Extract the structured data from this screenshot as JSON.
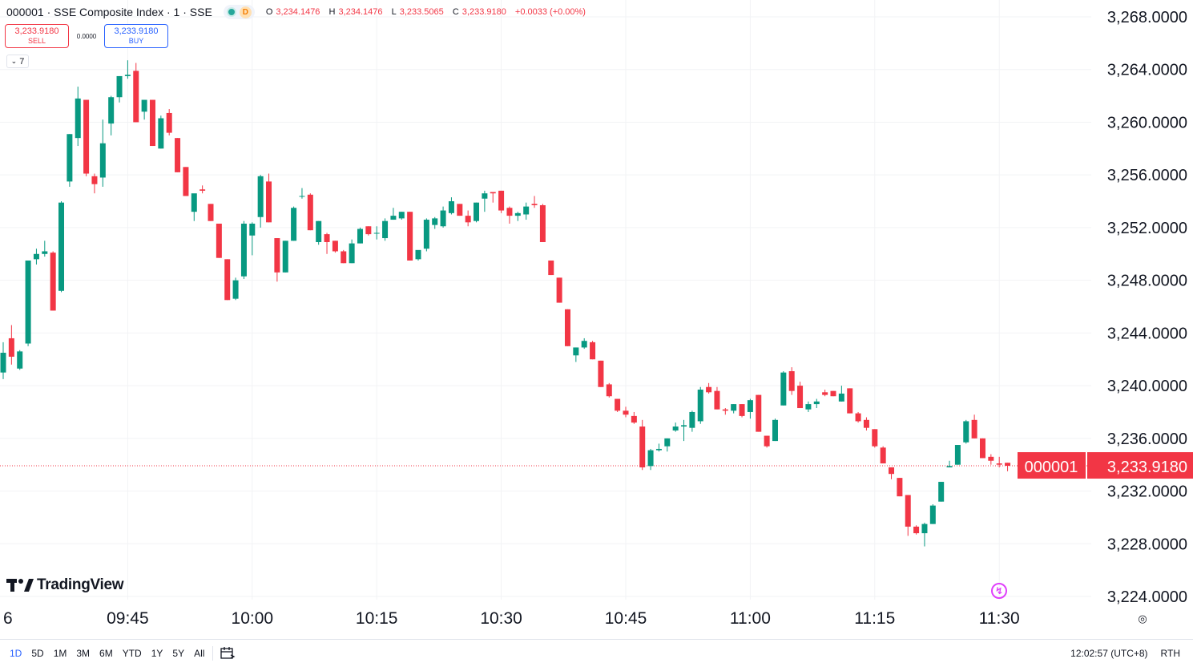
{
  "header": {
    "symbol": "000001 · SSE Composite Index · 1 · SSE",
    "status_letter": "D",
    "ohlc": [
      {
        "label": "O",
        "value": "3,234.1476"
      },
      {
        "label": "H",
        "value": "3,234.1476"
      },
      {
        "label": "L",
        "value": "3,233.5065"
      },
      {
        "label": "C",
        "value": "3,233.9180"
      },
      {
        "label": "",
        "value": "+0.0033 (+0.00%)"
      }
    ]
  },
  "trade": {
    "sell_price": "3,233.9180",
    "sell_label": "SELL",
    "spread": "0.0000",
    "buy_price": "3,233.9180",
    "buy_label": "BUY"
  },
  "indicators_toggle": "7",
  "logo": "TradingView",
  "price_tag": {
    "symbol": "000001",
    "price": "3,233.9180"
  },
  "colors": {
    "up": "#089981",
    "down": "#f23645",
    "grid": "#f2f3f5",
    "axis_text": "#131722",
    "price_line": "#f23645"
  },
  "icons": [
    "chevron-down-icon",
    "tradingview-logo-icon",
    "flash-icon",
    "calendar-range-icon",
    "settings-icon"
  ],
  "bottom_bar": {
    "ranges": [
      "1D",
      "5D",
      "1M",
      "3M",
      "6M",
      "YTD",
      "1Y",
      "5Y",
      "All"
    ],
    "active_range": "1D",
    "time": "12:02:57 (UTC+8)",
    "session": "RTH"
  },
  "chart_data": {
    "type": "candlestick",
    "title": "000001 · SSE Composite Index · 1 · SSE",
    "interval": "1 minute",
    "x_axis_labels": [
      "6",
      "09:45",
      "10:00",
      "10:15",
      "10:30",
      "10:45",
      "11:00",
      "11:15",
      "11:30"
    ],
    "y_ticks": [
      "3,268.0000",
      "3,264.0000",
      "3,260.0000",
      "3,256.0000",
      "3,252.0000",
      "3,248.0000",
      "3,244.0000",
      "3,240.0000",
      "3,236.0000",
      "3,232.0000",
      "3,228.0000",
      "3,224.0000"
    ],
    "ylim": [
      3224,
      3268
    ],
    "last_price": 3233.918,
    "grid": true,
    "candles": [
      {
        "t": "09:30",
        "o": 3241.0,
        "h": 3243.3,
        "l": 3240.5,
        "c": 3242.5
      },
      {
        "t": "09:31",
        "o": 3243.6,
        "h": 3244.6,
        "l": 3241.6,
        "c": 3242.2
      },
      {
        "t": "09:32",
        "o": 3241.3,
        "h": 3242.7,
        "l": 3241.2,
        "c": 3242.6
      },
      {
        "t": "09:33",
        "o": 3243.2,
        "h": 3249.5,
        "l": 3243.0,
        "c": 3249.5
      },
      {
        "t": "09:34",
        "o": 3249.6,
        "h": 3250.4,
        "l": 3249.2,
        "c": 3250.0
      },
      {
        "t": "09:35",
        "o": 3250.0,
        "h": 3251.0,
        "l": 3249.8,
        "c": 3250.2
      },
      {
        "t": "09:36",
        "o": 3250.1,
        "h": 3250.2,
        "l": 3245.7,
        "c": 3245.7
      },
      {
        "t": "09:37",
        "o": 3247.2,
        "h": 3254.0,
        "l": 3247.1,
        "c": 3253.9
      },
      {
        "t": "09:38",
        "o": 3255.5,
        "h": 3259.1,
        "l": 3255.1,
        "c": 3259.1
      },
      {
        "t": "09:39",
        "o": 3258.8,
        "h": 3262.7,
        "l": 3258.2,
        "c": 3261.8
      },
      {
        "t": "09:40",
        "o": 3261.7,
        "h": 3261.7,
        "l": 3255.9,
        "c": 3256.1
      },
      {
        "t": "09:41",
        "o": 3255.9,
        "h": 3256.1,
        "l": 3254.6,
        "c": 3255.3
      },
      {
        "t": "09:42",
        "o": 3255.8,
        "h": 3260.2,
        "l": 3255.1,
        "c": 3258.4
      },
      {
        "t": "09:43",
        "o": 3259.9,
        "h": 3262.0,
        "l": 3259.0,
        "c": 3261.9
      },
      {
        "t": "09:44",
        "o": 3261.9,
        "h": 3263.5,
        "l": 3261.5,
        "c": 3263.5
      },
      {
        "t": "09:45",
        "o": 3263.5,
        "h": 3264.7,
        "l": 3263.3,
        "c": 3263.6
      },
      {
        "t": "09:46",
        "o": 3263.9,
        "h": 3264.5,
        "l": 3260.0,
        "c": 3260.0
      },
      {
        "t": "09:47",
        "o": 3260.8,
        "h": 3261.7,
        "l": 3260.2,
        "c": 3261.7
      },
      {
        "t": "09:48",
        "o": 3261.7,
        "h": 3261.7,
        "l": 3258.2,
        "c": 3258.2
      },
      {
        "t": "09:49",
        "o": 3258.0,
        "h": 3260.5,
        "l": 3258.0,
        "c": 3260.3
      },
      {
        "t": "09:50",
        "o": 3260.7,
        "h": 3261.0,
        "l": 3259.0,
        "c": 3259.2
      },
      {
        "t": "09:51",
        "o": 3258.8,
        "h": 3258.8,
        "l": 3256.2,
        "c": 3256.2
      },
      {
        "t": "09:52",
        "o": 3256.6,
        "h": 3256.6,
        "l": 3254.4,
        "c": 3254.4
      },
      {
        "t": "09:53",
        "o": 3253.2,
        "h": 3254.4,
        "l": 3252.5,
        "c": 3254.6
      },
      {
        "t": "09:54",
        "o": 3254.9,
        "h": 3255.2,
        "l": 3254.6,
        "c": 3254.8
      },
      {
        "t": "09:55",
        "o": 3253.8,
        "h": 3253.8,
        "l": 3252.5,
        "c": 3252.5
      },
      {
        "t": "09:56",
        "o": 3252.3,
        "h": 3252.3,
        "l": 3249.7,
        "c": 3249.7
      },
      {
        "t": "09:57",
        "o": 3249.6,
        "h": 3249.6,
        "l": 3246.5,
        "c": 3246.5
      },
      {
        "t": "09:58",
        "o": 3246.6,
        "h": 3248.2,
        "l": 3246.5,
        "c": 3248.0
      },
      {
        "t": "09:59",
        "o": 3248.3,
        "h": 3252.5,
        "l": 3248.1,
        "c": 3252.3
      },
      {
        "t": "10:00",
        "o": 3251.4,
        "h": 3252.4,
        "l": 3249.9,
        "c": 3252.3
      },
      {
        "t": "10:01",
        "o": 3252.8,
        "h": 3256.0,
        "l": 3252.0,
        "c": 3255.9
      },
      {
        "t": "10:02",
        "o": 3255.5,
        "h": 3256.1,
        "l": 3252.4,
        "c": 3252.4
      },
      {
        "t": "10:03",
        "o": 3251.2,
        "h": 3251.2,
        "l": 3247.9,
        "c": 3248.6
      },
      {
        "t": "10:04",
        "o": 3248.6,
        "h": 3251.0,
        "l": 3248.6,
        "c": 3251.0
      },
      {
        "t": "10:05",
        "o": 3251.0,
        "h": 3253.6,
        "l": 3251.0,
        "c": 3253.5
      },
      {
        "t": "10:06",
        "o": 3254.4,
        "h": 3255.0,
        "l": 3254.2,
        "c": 3254.4
      },
      {
        "t": "10:07",
        "o": 3254.5,
        "h": 3254.6,
        "l": 3251.8,
        "c": 3251.8
      },
      {
        "t": "10:08",
        "o": 3250.9,
        "h": 3252.5,
        "l": 3250.7,
        "c": 3252.5
      },
      {
        "t": "10:09",
        "o": 3251.5,
        "h": 3251.6,
        "l": 3250.0,
        "c": 3250.9
      },
      {
        "t": "10:10",
        "o": 3251.0,
        "h": 3251.0,
        "l": 3250.1,
        "c": 3250.2
      },
      {
        "t": "10:11",
        "o": 3250.2,
        "h": 3250.3,
        "l": 3249.3,
        "c": 3249.3
      },
      {
        "t": "10:12",
        "o": 3249.3,
        "h": 3251.1,
        "l": 3249.3,
        "c": 3250.8
      },
      {
        "t": "10:13",
        "o": 3250.8,
        "h": 3252.0,
        "l": 3250.8,
        "c": 3251.9
      },
      {
        "t": "10:14",
        "o": 3252.1,
        "h": 3252.1,
        "l": 3251.4,
        "c": 3251.5
      },
      {
        "t": "10:15",
        "o": 3251.6,
        "h": 3252.1,
        "l": 3251.1,
        "c": 3251.6
      },
      {
        "t": "10:16",
        "o": 3251.2,
        "h": 3252.7,
        "l": 3251.0,
        "c": 3252.5
      },
      {
        "t": "10:17",
        "o": 3252.6,
        "h": 3253.5,
        "l": 3252.6,
        "c": 3252.9
      },
      {
        "t": "10:18",
        "o": 3252.7,
        "h": 3253.2,
        "l": 3252.6,
        "c": 3253.2
      },
      {
        "t": "10:19",
        "o": 3253.2,
        "h": 3253.2,
        "l": 3249.5,
        "c": 3249.5
      },
      {
        "t": "10:20",
        "o": 3249.6,
        "h": 3250.2,
        "l": 3249.5,
        "c": 3250.3
      },
      {
        "t": "10:21",
        "o": 3250.4,
        "h": 3252.7,
        "l": 3250.2,
        "c": 3252.6
      },
      {
        "t": "10:22",
        "o": 3252.2,
        "h": 3252.8,
        "l": 3251.9,
        "c": 3252.7
      },
      {
        "t": "10:23",
        "o": 3252.1,
        "h": 3253.6,
        "l": 3252.0,
        "c": 3253.3
      },
      {
        "t": "10:24",
        "o": 3253.1,
        "h": 3254.3,
        "l": 3253.0,
        "c": 3254.0
      },
      {
        "t": "10:25",
        "o": 3253.8,
        "h": 3253.8,
        "l": 3252.9,
        "c": 3252.9
      },
      {
        "t": "10:26",
        "o": 3252.9,
        "h": 3253.3,
        "l": 3252.1,
        "c": 3252.4
      },
      {
        "t": "10:27",
        "o": 3252.5,
        "h": 3253.9,
        "l": 3252.4,
        "c": 3253.9
      },
      {
        "t": "10:28",
        "o": 3254.2,
        "h": 3254.8,
        "l": 3253.2,
        "c": 3254.6
      },
      {
        "t": "10:29",
        "o": 3254.7,
        "h": 3254.7,
        "l": 3253.9,
        "c": 3254.6
      },
      {
        "t": "10:30",
        "o": 3254.8,
        "h": 3254.8,
        "l": 3253.1,
        "c": 3253.3
      },
      {
        "t": "10:31",
        "o": 3253.5,
        "h": 3253.6,
        "l": 3252.3,
        "c": 3252.9
      },
      {
        "t": "10:32",
        "o": 3252.9,
        "h": 3253.2,
        "l": 3252.5,
        "c": 3253.1
      },
      {
        "t": "10:33",
        "o": 3253.0,
        "h": 3253.9,
        "l": 3252.6,
        "c": 3253.6
      },
      {
        "t": "10:34",
        "o": 3253.8,
        "h": 3254.4,
        "l": 3253.5,
        "c": 3253.7
      },
      {
        "t": "10:35",
        "o": 3253.7,
        "h": 3253.8,
        "l": 3250.9,
        "c": 3250.9
      },
      {
        "t": "10:36",
        "o": 3249.5,
        "h": 3249.5,
        "l": 3248.4,
        "c": 3248.4
      },
      {
        "t": "10:37",
        "o": 3248.2,
        "h": 3248.2,
        "l": 3246.3,
        "c": 3246.3
      },
      {
        "t": "10:38",
        "o": 3245.8,
        "h": 3245.8,
        "l": 3243.0,
        "c": 3243.0
      },
      {
        "t": "10:39",
        "o": 3242.3,
        "h": 3242.9,
        "l": 3241.8,
        "c": 3242.9
      },
      {
        "t": "10:40",
        "o": 3242.9,
        "h": 3243.6,
        "l": 3242.8,
        "c": 3243.4
      },
      {
        "t": "10:41",
        "o": 3243.3,
        "h": 3243.4,
        "l": 3242.0,
        "c": 3242.0
      },
      {
        "t": "10:42",
        "o": 3241.9,
        "h": 3241.9,
        "l": 3239.9,
        "c": 3239.9
      },
      {
        "t": "10:43",
        "o": 3240.1,
        "h": 3240.2,
        "l": 3239.1,
        "c": 3239.2
      },
      {
        "t": "10:44",
        "o": 3239.0,
        "h": 3239.0,
        "l": 3238.0,
        "c": 3238.1
      },
      {
        "t": "10:45",
        "o": 3238.1,
        "h": 3238.4,
        "l": 3237.6,
        "c": 3237.8
      },
      {
        "t": "10:46",
        "o": 3237.7,
        "h": 3238.0,
        "l": 3237.1,
        "c": 3237.2
      },
      {
        "t": "10:47",
        "o": 3236.9,
        "h": 3237.4,
        "l": 3233.6,
        "c": 3233.8
      },
      {
        "t": "10:48",
        "o": 3233.9,
        "h": 3235.2,
        "l": 3233.6,
        "c": 3235.1
      },
      {
        "t": "10:49",
        "o": 3235.1,
        "h": 3235.6,
        "l": 3235.0,
        "c": 3235.2
      },
      {
        "t": "10:50",
        "o": 3235.4,
        "h": 3236.0,
        "l": 3235.0,
        "c": 3236.0
      },
      {
        "t": "10:51",
        "o": 3236.6,
        "h": 3237.2,
        "l": 3236.5,
        "c": 3236.9
      },
      {
        "t": "10:52",
        "o": 3236.9,
        "h": 3237.4,
        "l": 3235.8,
        "c": 3237.0
      },
      {
        "t": "10:53",
        "o": 3236.8,
        "h": 3238.1,
        "l": 3236.5,
        "c": 3238.0
      },
      {
        "t": "10:54",
        "o": 3237.3,
        "h": 3239.9,
        "l": 3237.1,
        "c": 3239.7
      },
      {
        "t": "10:55",
        "o": 3239.9,
        "h": 3240.2,
        "l": 3239.4,
        "c": 3239.5
      },
      {
        "t": "10:56",
        "o": 3239.6,
        "h": 3239.9,
        "l": 3238.2,
        "c": 3238.2
      },
      {
        "t": "10:57",
        "o": 3238.2,
        "h": 3238.3,
        "l": 3237.8,
        "c": 3238.1
      },
      {
        "t": "10:58",
        "o": 3238.1,
        "h": 3238.6,
        "l": 3237.9,
        "c": 3238.6
      },
      {
        "t": "10:59",
        "o": 3238.6,
        "h": 3238.6,
        "l": 3237.6,
        "c": 3237.7
      },
      {
        "t": "11:00",
        "o": 3238.0,
        "h": 3239.0,
        "l": 3237.5,
        "c": 3238.9
      },
      {
        "t": "11:01",
        "o": 3239.3,
        "h": 3239.3,
        "l": 3236.5,
        "c": 3236.5
      },
      {
        "t": "11:02",
        "o": 3236.2,
        "h": 3236.2,
        "l": 3235.3,
        "c": 3235.4
      },
      {
        "t": "11:03",
        "o": 3235.8,
        "h": 3237.5,
        "l": 3235.8,
        "c": 3237.4
      },
      {
        "t": "11:04",
        "o": 3238.5,
        "h": 3241.1,
        "l": 3238.5,
        "c": 3241.0
      },
      {
        "t": "11:05",
        "o": 3241.1,
        "h": 3241.4,
        "l": 3239.3,
        "c": 3239.6
      },
      {
        "t": "11:06",
        "o": 3240.0,
        "h": 3240.3,
        "l": 3238.3,
        "c": 3238.3
      },
      {
        "t": "11:07",
        "o": 3238.2,
        "h": 3238.8,
        "l": 3238.0,
        "c": 3238.6
      },
      {
        "t": "11:08",
        "o": 3238.6,
        "h": 3239.0,
        "l": 3238.3,
        "c": 3238.8
      },
      {
        "t": "11:09",
        "o": 3239.5,
        "h": 3239.7,
        "l": 3239.2,
        "c": 3239.3
      },
      {
        "t": "11:10",
        "o": 3239.6,
        "h": 3239.6,
        "l": 3239.2,
        "c": 3239.2
      },
      {
        "t": "11:11",
        "o": 3238.8,
        "h": 3240.0,
        "l": 3238.8,
        "c": 3239.4
      },
      {
        "t": "11:12",
        "o": 3239.8,
        "h": 3239.8,
        "l": 3237.9,
        "c": 3237.9
      },
      {
        "t": "11:13",
        "o": 3237.9,
        "h": 3238.0,
        "l": 3237.2,
        "c": 3237.3
      },
      {
        "t": "11:14",
        "o": 3237.4,
        "h": 3237.6,
        "l": 3236.6,
        "c": 3236.8
      },
      {
        "t": "11:15",
        "o": 3236.7,
        "h": 3236.7,
        "l": 3235.3,
        "c": 3235.4
      },
      {
        "t": "11:16",
        "o": 3235.3,
        "h": 3235.4,
        "l": 3234.1,
        "c": 3234.1
      },
      {
        "t": "11:17",
        "o": 3233.8,
        "h": 3233.8,
        "l": 3232.9,
        "c": 3233.3
      },
      {
        "t": "11:18",
        "o": 3233.0,
        "h": 3233.0,
        "l": 3231.6,
        "c": 3231.6
      },
      {
        "t": "11:19",
        "o": 3231.7,
        "h": 3231.7,
        "l": 3228.6,
        "c": 3229.3
      },
      {
        "t": "11:20",
        "o": 3229.3,
        "h": 3229.4,
        "l": 3228.7,
        "c": 3228.8
      },
      {
        "t": "11:21",
        "o": 3228.8,
        "h": 3229.6,
        "l": 3227.8,
        "c": 3229.5
      },
      {
        "t": "11:22",
        "o": 3229.5,
        "h": 3231.0,
        "l": 3229.5,
        "c": 3230.9
      },
      {
        "t": "11:23",
        "o": 3231.2,
        "h": 3232.7,
        "l": 3231.2,
        "c": 3232.7
      },
      {
        "t": "11:24",
        "o": 3233.8,
        "h": 3234.3,
        "l": 3233.8,
        "c": 3233.9
      },
      {
        "t": "11:25",
        "o": 3234.0,
        "h": 3235.5,
        "l": 3234.0,
        "c": 3235.5
      },
      {
        "t": "11:26",
        "o": 3235.7,
        "h": 3237.4,
        "l": 3235.6,
        "c": 3237.3
      },
      {
        "t": "11:27",
        "o": 3237.4,
        "h": 3237.8,
        "l": 3236.0,
        "c": 3236.0
      },
      {
        "t": "11:28",
        "o": 3236.0,
        "h": 3236.0,
        "l": 3234.5,
        "c": 3234.5
      },
      {
        "t": "11:29",
        "o": 3234.6,
        "h": 3234.8,
        "l": 3234.0,
        "c": 3234.3
      },
      {
        "t": "11:30",
        "o": 3234.1,
        "h": 3234.6,
        "l": 3233.8,
        "c": 3234.0
      },
      {
        "t": "11:31",
        "o": 3234.1476,
        "h": 3234.1476,
        "l": 3233.5065,
        "c": 3233.918
      }
    ]
  }
}
